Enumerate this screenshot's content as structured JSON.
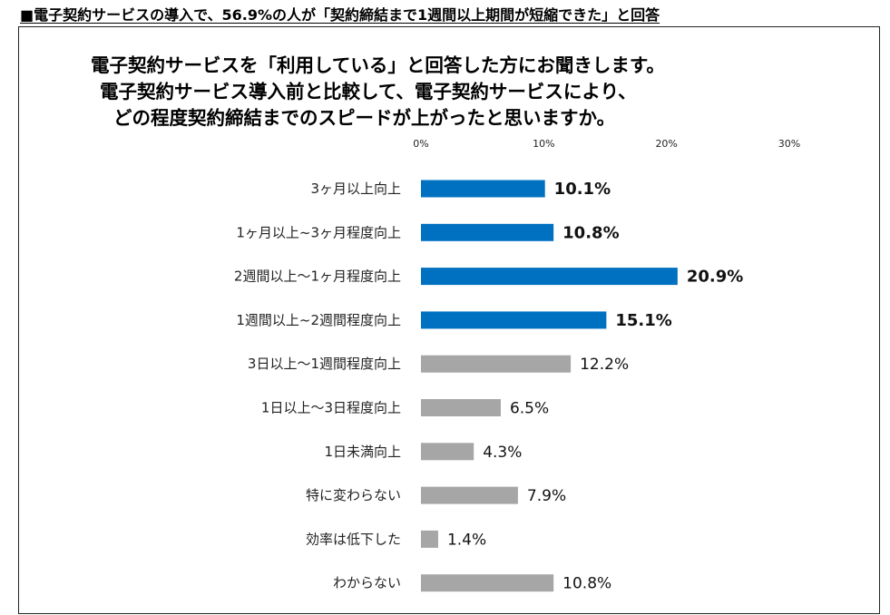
{
  "headline": "■電子契約サービスの導入で、56.9%の人が「契約締結まで1週間以上期間が短縮できた」と回答",
  "question": [
    "電子契約サービスを「利用している」と回答した方にお聞きします。",
    "電子契約サービス導入前と比較して、電子契約サービスにより、",
    "どの程度契約締結までのスピードが上がったと思いますか。"
  ],
  "chart_data": {
    "type": "bar",
    "orientation": "horizontal",
    "title": "",
    "xlim": [
      0,
      30
    ],
    "xticks": [
      0,
      10,
      20,
      30
    ],
    "tick_suffix": "%",
    "value_suffix": "%",
    "categories": [
      "3ヶ月以上向上",
      "1ヶ月以上~3ヶ月程度向上",
      "2週間以上～1ヶ月程度向上",
      "1週間以上~2週間程度向上",
      "3日以上～1週間程度向上",
      "1日以上～3日程度向上",
      "1日未満向上",
      "特に変わらない",
      "効率は低下した",
      "わからない"
    ],
    "values": [
      10.1,
      10.8,
      20.9,
      15.1,
      12.2,
      6.5,
      4.3,
      7.9,
      1.4,
      10.8
    ],
    "highlighted": [
      true,
      true,
      true,
      true,
      false,
      false,
      false,
      false,
      false,
      false
    ],
    "colors": {
      "highlight": "#0070C0",
      "other": "#A6A6A6"
    }
  }
}
